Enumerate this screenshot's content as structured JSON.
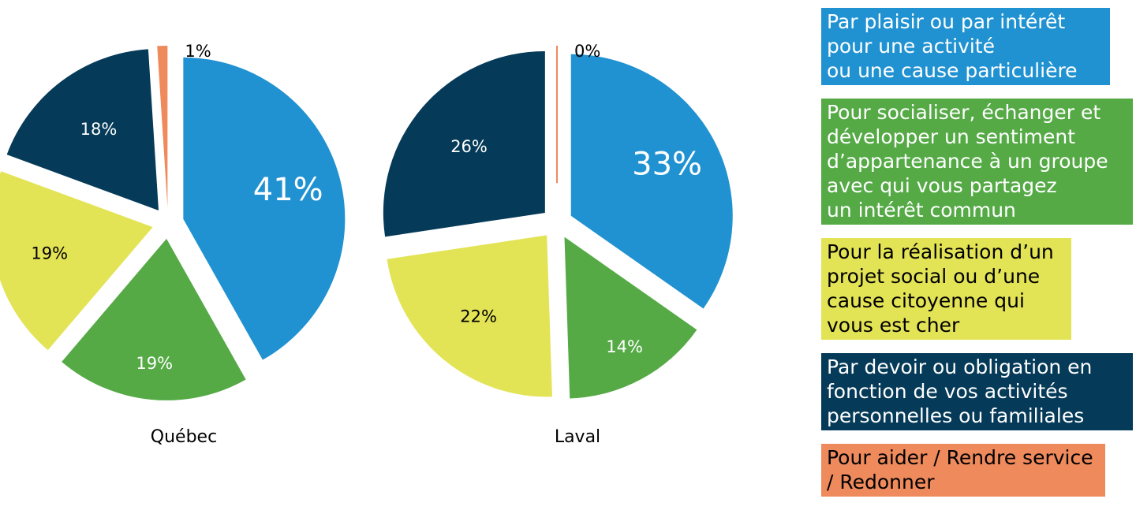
{
  "chart_data": {
    "type": "pie",
    "categories": [
      "Par plaisir ou par intérêt\npour une activité\nou une cause particulière",
      "Pour socialiser, échanger et\ndévelopper un sentiment\nd’appartenance à un groupe\navec qui vous partagez\nun intérêt commun",
      "Pour la réalisation d’un\nprojet social ou d’une\ncause citoyenne qui\nvous est cher",
      "Par devoir ou obligation en\nfonction de vos activités\npersonnelles ou familiales",
      "Pour aider / Rendre service\n/ Redonner"
    ],
    "colors": [
      "#2192d1",
      "#55aa46",
      "#e3e356",
      "#053a58",
      "#ee8a5c"
    ],
    "text_colors": [
      "#ffffff",
      "#ffffff",
      "#000000",
      "#ffffff",
      "#000000"
    ],
    "legend_widths": [
      366,
      395,
      317,
      395,
      360
    ],
    "pies": [
      {
        "name": "Québec",
        "values": [
          41,
          19,
          19,
          18,
          1
        ],
        "labels": [
          "41%",
          "19%",
          "19%",
          "18%",
          "1%"
        ]
      },
      {
        "name": "Laval",
        "values": [
          33,
          14,
          22,
          26,
          0
        ],
        "labels": [
          "33%",
          "14%",
          "22%",
          "26%",
          "0%"
        ]
      }
    ]
  }
}
